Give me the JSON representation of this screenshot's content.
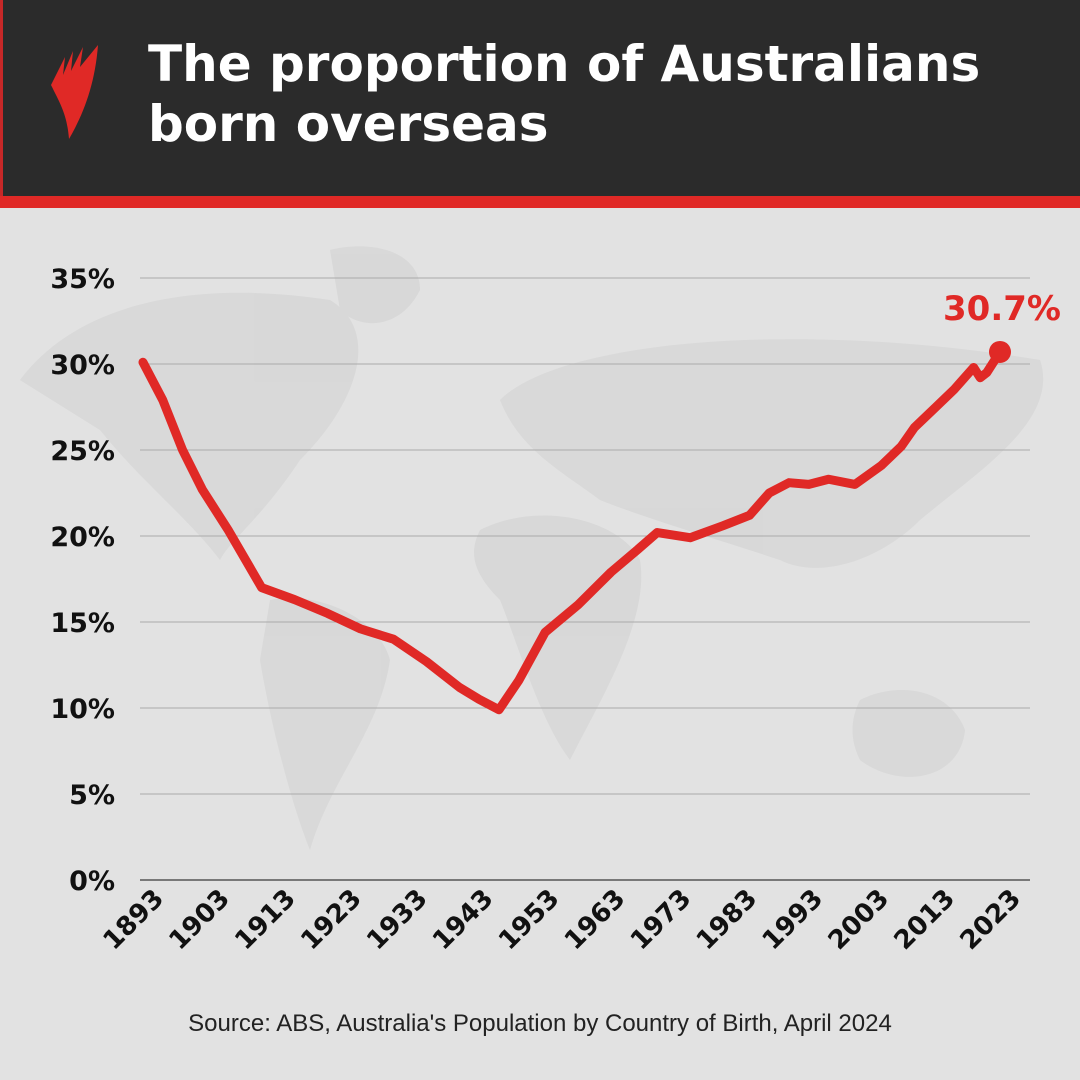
{
  "header": {
    "title": "The proportion of Australians born overseas"
  },
  "colors": {
    "header_bg": "#2b2b2b",
    "accent": "#e02926",
    "background": "#e2e2e2"
  },
  "logo": {
    "icon": "sbs-logo-icon"
  },
  "source": "Source: ABS, Australia's Population by Country of Birth, April 2024",
  "chart_data": {
    "type": "line",
    "title": "",
    "xlabel": "",
    "ylabel": "",
    "xlim": [
      1893,
      2023
    ],
    "ylim": [
      0,
      35
    ],
    "grid": true,
    "x_ticks": [
      "1893",
      "1903",
      "1913",
      "1923",
      "1933",
      "1943",
      "1953",
      "1963",
      "1973",
      "1983",
      "1993",
      "2003",
      "2013",
      "2023"
    ],
    "y_ticks": [
      "0%",
      "5%",
      "10%",
      "15%",
      "20%",
      "25%",
      "30%",
      "35%"
    ],
    "annotation": "30.7%",
    "series": [
      {
        "color": "#e02926",
        "x": [
          1893,
          1896,
          1899,
          1902,
          1906,
          1911,
          1916,
          1921,
          1926,
          1931,
          1936,
          1941,
          1944,
          1947,
          1950,
          1954,
          1959,
          1964,
          1968,
          1971,
          1976,
          1981,
          1985,
          1988,
          1991,
          1994,
          1997,
          2001,
          2005,
          2008,
          2010,
          2013,
          2016,
          2019,
          2020,
          2021,
          2023
        ],
        "y": [
          30.1,
          27.9,
          25.0,
          22.7,
          20.3,
          17.0,
          16.3,
          15.5,
          14.6,
          14.0,
          12.7,
          11.2,
          10.5,
          9.9,
          11.6,
          14.4,
          16.0,
          17.9,
          19.2,
          20.2,
          19.9,
          20.6,
          21.2,
          22.5,
          23.1,
          23.0,
          23.3,
          23.0,
          24.1,
          25.2,
          26.3,
          27.4,
          28.5,
          29.8,
          29.2,
          29.5,
          30.7
        ]
      }
    ]
  }
}
